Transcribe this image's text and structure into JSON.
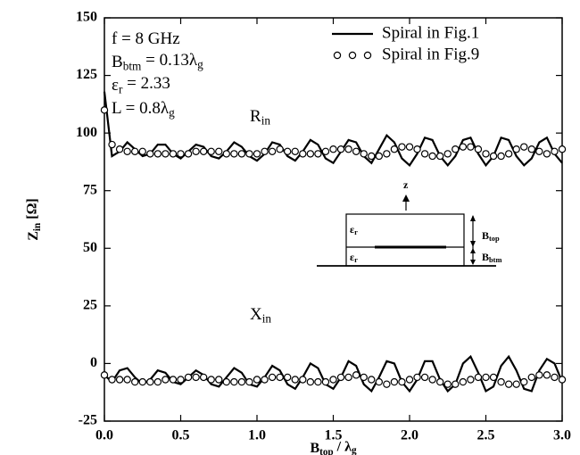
{
  "chart_data": {
    "type": "line",
    "x_label": [
      {
        "text": "B"
      },
      {
        "text": "top",
        "sub": true
      },
      {
        "text": " / λ"
      },
      {
        "text": "g",
        "sub": true
      }
    ],
    "y_label": [
      {
        "text": "Z"
      },
      {
        "text": "in",
        "sub": true
      },
      {
        "text": " [Ω]"
      }
    ],
    "xlim": [
      0,
      3
    ],
    "ylim": [
      -25,
      150
    ],
    "xticks": [
      {
        "value": 0,
        "label": "0.0"
      },
      {
        "value": 0.5,
        "label": "0.5"
      },
      {
        "value": 1,
        "label": "1.0"
      },
      {
        "value": 1.5,
        "label": "1.5"
      },
      {
        "value": 2,
        "label": "2.0"
      },
      {
        "value": 2.5,
        "label": "2.5"
      },
      {
        "value": 3,
        "label": "3.0"
      }
    ],
    "yticks": [
      -25,
      0,
      25,
      50,
      75,
      100,
      125,
      150
    ],
    "legend": "upper right",
    "x": [
      0,
      0.05,
      0.1,
      0.15,
      0.2,
      0.25,
      0.3,
      0.35,
      0.4,
      0.45,
      0.5,
      0.55,
      0.6,
      0.65,
      0.7,
      0.75,
      0.8,
      0.85,
      0.9,
      0.95,
      1,
      1.05,
      1.1,
      1.15,
      1.2,
      1.25,
      1.3,
      1.35,
      1.4,
      1.45,
      1.5,
      1.55,
      1.6,
      1.65,
      1.7,
      1.75,
      1.8,
      1.85,
      1.9,
      1.95,
      2,
      2.05,
      2.1,
      2.15,
      2.2,
      2.25,
      2.3,
      2.35,
      2.4,
      2.45,
      2.5,
      2.55,
      2.6,
      2.65,
      2.7,
      2.75,
      2.8,
      2.85,
      2.9,
      2.95,
      3
    ],
    "series": [
      {
        "name": "Spiral in Fig.1",
        "marker": "line",
        "color": "#000000",
        "curves": [
          [
            118,
            90,
            92,
            96,
            93,
            90,
            91,
            95,
            95,
            91,
            89,
            92,
            95,
            94,
            90,
            89,
            92,
            96,
            94,
            90,
            88,
            91,
            96,
            95,
            90,
            88,
            92,
            97,
            95,
            89,
            87,
            92,
            97,
            96,
            90,
            87,
            93,
            99,
            96,
            89,
            86,
            91,
            98,
            97,
            90,
            86,
            90,
            97,
            98,
            91,
            86,
            90,
            98,
            97,
            90,
            86,
            89,
            96,
            98,
            91,
            87
          ],
          [
            -5,
            -8,
            -3,
            -2,
            -6,
            -9,
            -7,
            -3,
            -4,
            -8,
            -9,
            -6,
            -3,
            -5,
            -9,
            -10,
            -6,
            -2,
            -4,
            -9,
            -10,
            -6,
            -1,
            -3,
            -9,
            -11,
            -6,
            0,
            -2,
            -9,
            -11,
            -6,
            1,
            -1,
            -9,
            -12,
            -6,
            1,
            0,
            -8,
            -12,
            -7,
            1,
            1,
            -7,
            -12,
            -9,
            0,
            3,
            -4,
            -12,
            -10,
            -1,
            3,
            -3,
            -11,
            -12,
            -3,
            2,
            0,
            -8
          ]
        ]
      },
      {
        "name": "Spiral in Fig.9",
        "marker": "circle",
        "color": "#000000",
        "curves": [
          [
            110,
            95,
            93,
            92,
            92,
            92,
            91,
            91,
            91,
            91,
            91,
            91,
            92,
            92,
            92,
            92,
            91,
            91,
            91,
            91,
            91,
            92,
            92,
            93,
            92,
            92,
            91,
            91,
            91,
            92,
            93,
            93,
            93,
            92,
            91,
            90,
            90,
            91,
            93,
            94,
            94,
            93,
            91,
            90,
            90,
            91,
            93,
            94,
            94,
            93,
            91,
            90,
            90,
            91,
            93,
            94,
            93,
            92,
            91,
            92,
            93
          ],
          [
            -5,
            -7,
            -7,
            -7,
            -8,
            -8,
            -8,
            -8,
            -7,
            -7,
            -7,
            -6,
            -6,
            -6,
            -7,
            -7,
            -8,
            -8,
            -8,
            -8,
            -7,
            -7,
            -6,
            -6,
            -6,
            -7,
            -7,
            -8,
            -8,
            -8,
            -7,
            -6,
            -6,
            -5,
            -6,
            -7,
            -8,
            -9,
            -8,
            -8,
            -7,
            -6,
            -6,
            -7,
            -8,
            -9,
            -9,
            -8,
            -7,
            -6,
            -6,
            -6,
            -8,
            -9,
            -9,
            -8,
            -6,
            -5,
            -5,
            -6,
            -7
          ]
        ]
      }
    ],
    "annotations": [
      [
        {
          "text": "f = 8 GHz"
        }
      ],
      [
        {
          "text": "B"
        },
        {
          "text": "btm",
          "sub": true
        },
        {
          "text": " = 0.13λ"
        },
        {
          "text": "g",
          "sub": true
        }
      ],
      [
        {
          "text": "ε"
        },
        {
          "text": "r",
          "sub": true
        },
        {
          "text": " = 2.33"
        }
      ],
      [
        {
          "text": "L = 0.8λ"
        },
        {
          "text": "g",
          "sub": true
        }
      ]
    ],
    "curve_labels": [
      [
        {
          "text": "R"
        },
        {
          "text": "in",
          "sub": true
        }
      ],
      [
        {
          "text": "X"
        },
        {
          "text": "in",
          "sub": true
        }
      ]
    ],
    "inset_labels": [
      [
        {
          "text": "z"
        }
      ],
      [
        {
          "text": "ε"
        },
        {
          "text": "r",
          "sub": true
        }
      ],
      [
        {
          "text": "ε"
        },
        {
          "text": "r",
          "sub": true
        }
      ],
      [
        {
          "text": "B"
        },
        {
          "text": "top",
          "sub": true
        }
      ],
      [
        {
          "text": "B"
        },
        {
          "text": "btm",
          "sub": true
        }
      ]
    ]
  }
}
